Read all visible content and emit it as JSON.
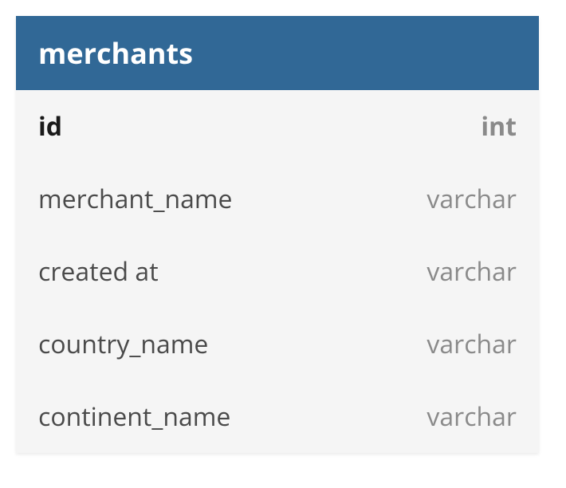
{
  "table": {
    "name": "merchants",
    "header_bg": "#316896",
    "header_text_color": "#ffffff",
    "header_fontsize": 36,
    "body_bg": "#f5f5f5",
    "column_name_color": "#4a4a4a",
    "column_type_color": "#8a8a8a",
    "pk_name_color": "#1a1a1a",
    "pk_type_color": "#8a8a8a",
    "row_fontsize": 32,
    "columns": [
      {
        "name": "id",
        "type": "int",
        "primary_key": true
      },
      {
        "name": "merchant_name",
        "type": "varchar",
        "primary_key": false
      },
      {
        "name": "created at",
        "type": "varchar",
        "primary_key": false
      },
      {
        "name": "country_name",
        "type": "varchar",
        "primary_key": false
      },
      {
        "name": "continent_name",
        "type": "varchar",
        "primary_key": false
      }
    ]
  }
}
